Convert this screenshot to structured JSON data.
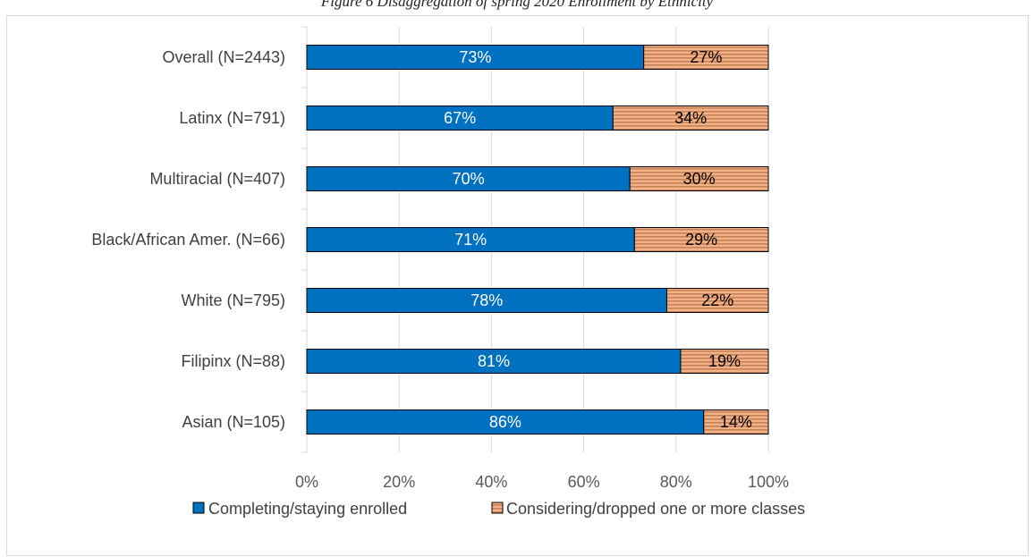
{
  "caption": "Figure 6 Disaggregation of spring 2020 Enrollment by Ethnicity",
  "colors": {
    "completing": "#0070c0",
    "considering_base": "#f4b183",
    "considering_stripe": "#c5825a",
    "grid": "#d9d9d9",
    "bar_border": "#000000"
  },
  "chart_data": {
    "type": "bar",
    "orientation": "horizontal",
    "stacked": "percent",
    "title": "",
    "xlabel": "",
    "ylabel": "",
    "xlim": [
      0,
      100
    ],
    "x_ticks": [
      "0%",
      "20%",
      "40%",
      "60%",
      "80%",
      "100%"
    ],
    "grid": true,
    "legend_position": "bottom",
    "categories": [
      "Overall (N=2443)",
      "Latinx (N=791)",
      "Multiracial (N=407)",
      "Black/African Amer. (N=66)",
      "White (N=795)",
      "Filipinx (N=88)",
      "Asian (N=105)"
    ],
    "series": [
      {
        "name": "Completing/staying enrolled",
        "values": [
          73,
          67,
          70,
          71,
          78,
          81,
          86
        ],
        "labels": [
          "73%",
          "67%",
          "70%",
          "71%",
          "78%",
          "81%",
          "86%"
        ]
      },
      {
        "name": "Considering/dropped one or more classes",
        "values": [
          27,
          34,
          30,
          29,
          22,
          19,
          14
        ],
        "labels": [
          "27%",
          "34%",
          "30%",
          "29%",
          "22%",
          "19%",
          "14%"
        ]
      }
    ]
  }
}
